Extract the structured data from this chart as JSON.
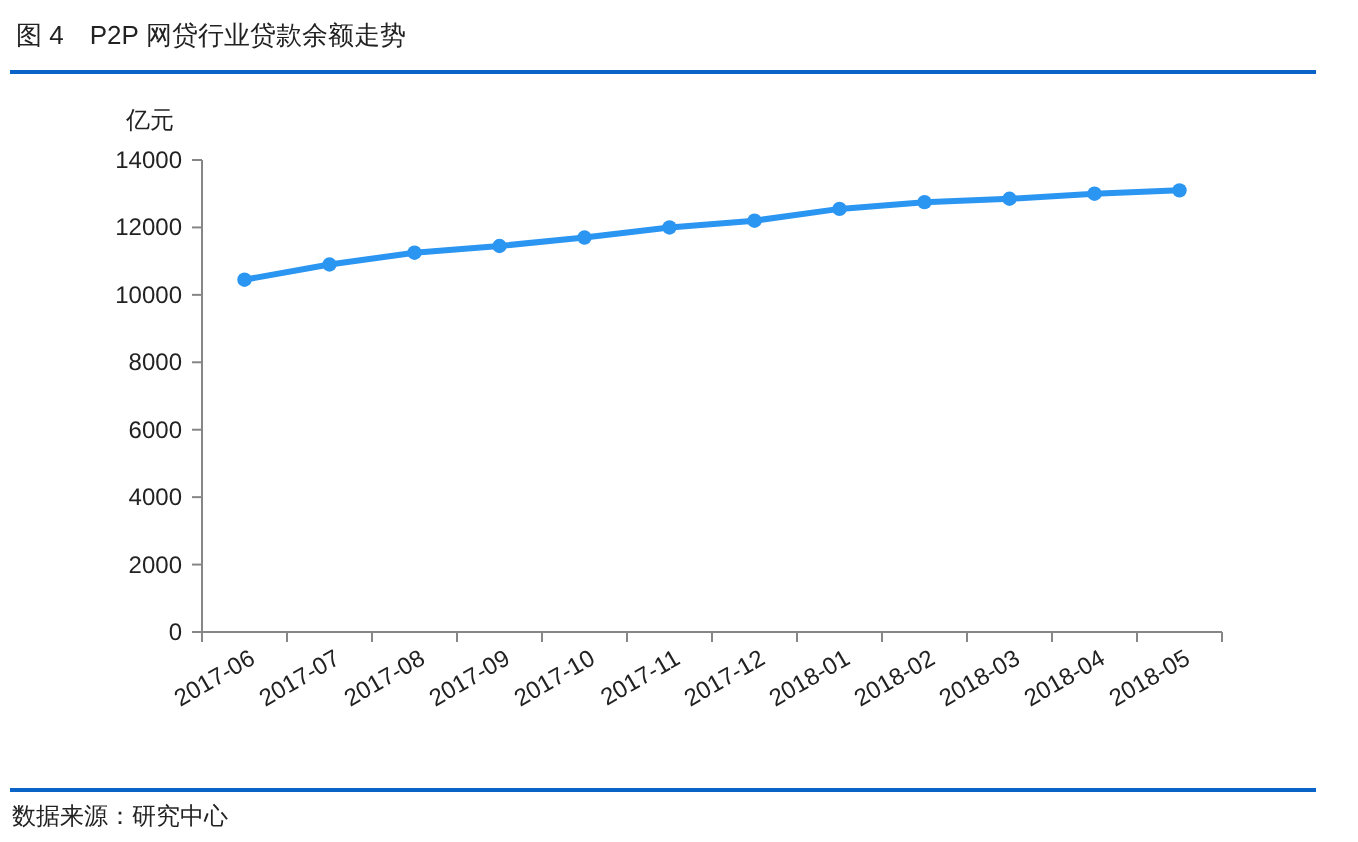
{
  "chart_data": {
    "type": "line",
    "title": "图 4　P2P 网贷行业贷款余额走势",
    "ylabel": "亿元",
    "categories": [
      "2017-06",
      "2017-07",
      "2017-08",
      "2017-09",
      "2017-10",
      "2017-11",
      "2017-12",
      "2018-01",
      "2018-02",
      "2018-03",
      "2018-04",
      "2018-05"
    ],
    "series": [
      {
        "color": "#2b95f2",
        "values": [
          10450,
          10900,
          11250,
          11450,
          11700,
          12000,
          12200,
          12550,
          12750,
          12850,
          13000,
          13100
        ]
      }
    ],
    "ylim": [
      0,
      14000
    ],
    "yticks": [
      0,
      2000,
      4000,
      6000,
      8000,
      10000,
      12000,
      14000
    ],
    "marker": "circle",
    "annotations": [
      "数据来源：研究中心"
    ]
  }
}
